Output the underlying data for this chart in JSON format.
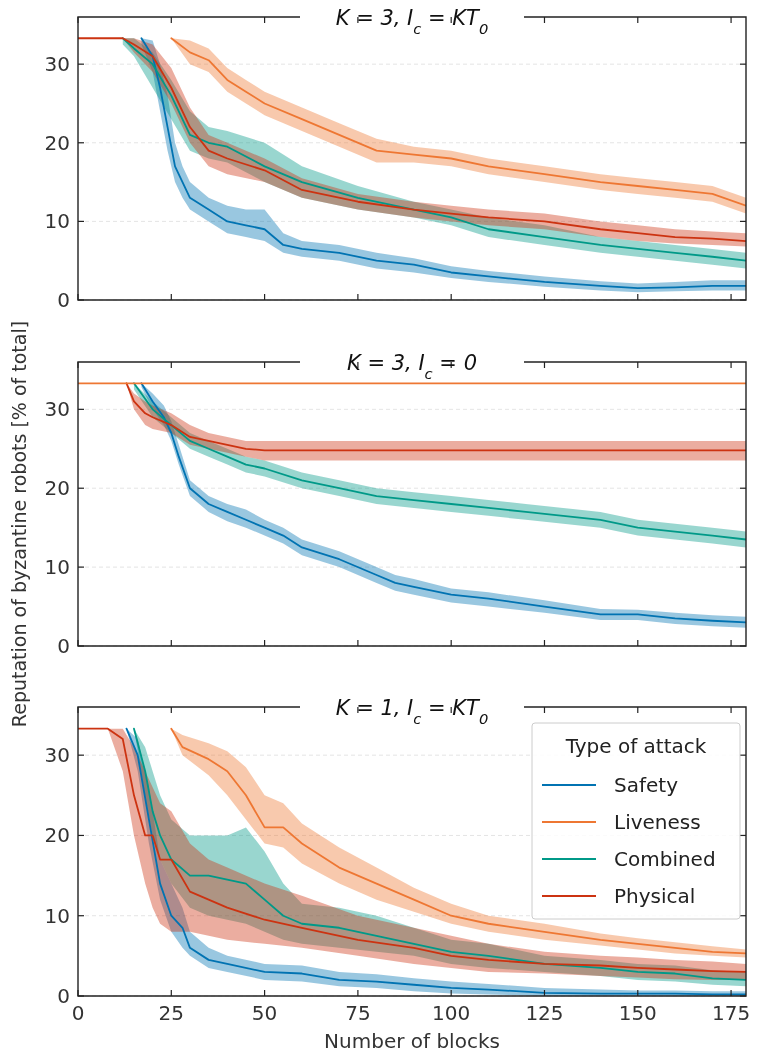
{
  "chart_data": [
    {
      "type": "line",
      "title": "K = 3, I$_{c}$ = KT$_{0}$",
      "xlim": [
        0,
        179
      ],
      "ylim": [
        0,
        36
      ],
      "xticks": [
        0,
        25,
        50,
        75,
        100,
        125,
        150,
        175
      ],
      "yticks": [
        0,
        10,
        20,
        30
      ],
      "grid": "y",
      "tick_labels": "y",
      "series": [
        {
          "color": "#0173b2",
          "x": [
            17,
            20,
            22,
            24,
            26,
            28,
            30,
            35,
            40,
            45,
            50,
            55,
            60,
            70,
            80,
            90,
            100,
            110,
            125,
            140,
            150,
            160,
            170,
            179
          ],
          "values": [
            33.3,
            31,
            27,
            22,
            17,
            15,
            13,
            11.5,
            10,
            9.5,
            9,
            7,
            6.5,
            6,
            5,
            4.5,
            3.5,
            3,
            2.3,
            1.8,
            1.5,
            1.6,
            1.8,
            1.8
          ],
          "lower": [
            32.5,
            29,
            24,
            19,
            15,
            13,
            11.5,
            10,
            8.5,
            8,
            7.5,
            6,
            5.5,
            5,
            4,
            3.5,
            2.8,
            2.3,
            1.7,
            1.2,
            1,
            1.1,
            1.2,
            1.2
          ],
          "upper": [
            33.3,
            33,
            30,
            26,
            20,
            17,
            15,
            13,
            12,
            11.5,
            11.5,
            8.5,
            7.5,
            7,
            6,
            5.3,
            4.3,
            3.7,
            3,
            2.4,
            2.1,
            2.3,
            2.5,
            2.5
          ]
        },
        {
          "color": "#ee7733",
          "x": [
            25,
            30,
            35,
            40,
            45,
            50,
            60,
            70,
            80,
            90,
            100,
            110,
            125,
            140,
            150,
            160,
            170,
            179
          ],
          "values": [
            33.3,
            31.5,
            30.5,
            28,
            26.5,
            25,
            23,
            21,
            19,
            18.5,
            18,
            17,
            16,
            15,
            14.5,
            14,
            13.5,
            12
          ],
          "lower": [
            33.3,
            30,
            29,
            26.5,
            25,
            23.5,
            21.5,
            19.5,
            17.5,
            17.5,
            17,
            16,
            15,
            14,
            13.5,
            13,
            12.5,
            11
          ],
          "upper": [
            33.3,
            33,
            32,
            29.5,
            28,
            26.5,
            24.5,
            22.5,
            20.5,
            19.5,
            19,
            18,
            17,
            16,
            15.5,
            15,
            14.5,
            13
          ]
        },
        {
          "color": "#009988",
          "x": [
            12,
            15,
            20,
            25,
            30,
            35,
            40,
            50,
            60,
            75,
            90,
            100,
            110,
            125,
            140,
            150,
            160,
            170,
            179
          ],
          "values": [
            33.3,
            32,
            30,
            26,
            21,
            20,
            19.5,
            17,
            15,
            13,
            11.5,
            10.5,
            9,
            8,
            7,
            6.5,
            6,
            5.5,
            5
          ],
          "lower": [
            32.5,
            31,
            27,
            23,
            19,
            18,
            17.5,
            15,
            13,
            11.5,
            10.5,
            9.5,
            8,
            7,
            6,
            5.5,
            5,
            4.5,
            4
          ],
          "upper": [
            33.3,
            33.3,
            31.5,
            28,
            24,
            22,
            21.5,
            20,
            17,
            14.5,
            12.5,
            11.5,
            10.5,
            9.5,
            8,
            7.5,
            7,
            6.5,
            6
          ]
        },
        {
          "color": "#cc3311",
          "x": [
            0,
            12,
            15,
            20,
            25,
            30,
            35,
            40,
            50,
            60,
            75,
            90,
            100,
            110,
            125,
            140,
            150,
            160,
            170,
            179
          ],
          "values": [
            33.3,
            33.3,
            32.5,
            31,
            27,
            22,
            19,
            18,
            16.5,
            14,
            12.5,
            11.5,
            11,
            10.5,
            10,
            9,
            8.5,
            8,
            7.8,
            7.5
          ],
          "lower": [
            33.3,
            33.3,
            31.5,
            29,
            25,
            20,
            17,
            16,
            15,
            13,
            11.5,
            10.5,
            10,
            9.5,
            9,
            8,
            7.5,
            7.2,
            7,
            6.8
          ],
          "upper": [
            33.3,
            33.3,
            33.3,
            32.5,
            29.5,
            24.5,
            21,
            20,
            18,
            15.5,
            13.5,
            12.5,
            12,
            11.5,
            11,
            10,
            9.5,
            9,
            8.7,
            8.5
          ]
        }
      ]
    },
    {
      "type": "line",
      "title": "K = 3, I$_{c}$ = 0",
      "ylabel": "Reputation of byzantine robots [% of total]",
      "xlim": [
        0,
        179
      ],
      "ylim": [
        0,
        36
      ],
      "xticks": [
        0,
        25,
        50,
        75,
        100,
        125,
        150,
        175
      ],
      "yticks": [
        0,
        10,
        20,
        30
      ],
      "grid": "y",
      "tick_labels": "y",
      "series": [
        {
          "color": "#0173b2",
          "x": [
            17,
            20,
            23,
            25,
            27,
            30,
            35,
            40,
            45,
            50,
            55,
            60,
            70,
            80,
            85,
            90,
            100,
            110,
            125,
            140,
            150,
            160,
            170,
            179
          ],
          "values": [
            33.3,
            31,
            29,
            27,
            24,
            20,
            18,
            17,
            16,
            15,
            14,
            12.5,
            11,
            9,
            8,
            7.5,
            6.5,
            6,
            5,
            4,
            4,
            3.5,
            3.2,
            3
          ],
          "lower": [
            32.8,
            30,
            28,
            26,
            23,
            19,
            17,
            15.8,
            15,
            14,
            13,
            11.5,
            10,
            8,
            7,
            6.5,
            5.5,
            5,
            4.2,
            3.3,
            3.3,
            2.8,
            2.5,
            2.3
          ],
          "upper": [
            33.3,
            32,
            30.5,
            28.5,
            25.5,
            21,
            19,
            18,
            17.3,
            16,
            15,
            13.5,
            12,
            10,
            9,
            8.5,
            7.3,
            6.8,
            5.8,
            4.7,
            4.6,
            4.2,
            3.9,
            3.7
          ]
        },
        {
          "color": "#009988",
          "x": [
            15,
            20,
            25,
            30,
            35,
            40,
            45,
            50,
            60,
            70,
            80,
            90,
            100,
            110,
            120,
            130,
            140,
            150,
            160,
            170,
            179
          ],
          "values": [
            33.3,
            30,
            28,
            26,
            25,
            24,
            23,
            22.5,
            21,
            20,
            19,
            18.5,
            18,
            17.5,
            17,
            16.5,
            16,
            15,
            14.5,
            14,
            13.5
          ],
          "lower": [
            32.5,
            29,
            27,
            25,
            24,
            23,
            22,
            21.5,
            20,
            19,
            18,
            17.5,
            17,
            16.5,
            16,
            15.5,
            15,
            14,
            13.5,
            13,
            12.5
          ],
          "upper": [
            33.3,
            31,
            29,
            27,
            26,
            25,
            24,
            23.5,
            22,
            21,
            20,
            19.5,
            19,
            18.5,
            18,
            17.5,
            17,
            16,
            15.5,
            15,
            14.5
          ]
        },
        {
          "color": "#cc3311",
          "x": [
            13,
            15,
            18,
            20,
            25,
            30,
            35,
            40,
            45,
            50,
            60,
            80,
            100,
            120,
            140,
            160,
            179
          ],
          "values": [
            33.3,
            31,
            29.5,
            29,
            28,
            26.5,
            26,
            25.5,
            25,
            24.8,
            24.8,
            24.8,
            24.8,
            24.8,
            24.8,
            24.8,
            24.8
          ],
          "lower": [
            33.3,
            30,
            28,
            27.5,
            27,
            25.5,
            25,
            24.5,
            24,
            23.5,
            23.5,
            23.5,
            23.5,
            23.5,
            23.5,
            23.5,
            23.5
          ],
          "upper": [
            33.3,
            32,
            31,
            30.5,
            29.5,
            28,
            27,
            26.5,
            26,
            26,
            26,
            26,
            26,
            26,
            26,
            26,
            26
          ]
        },
        {
          "color": "#ee7733",
          "x": [
            0,
            179
          ],
          "values": [
            33.3,
            33.3
          ]
        }
      ]
    },
    {
      "type": "line",
      "title": "K = 1, I$_{c}$ = KT$_{0}$",
      "xlabel": "Number of blocks",
      "xlim": [
        0,
        179
      ],
      "ylim": [
        0,
        36
      ],
      "xticks": [
        0,
        25,
        50,
        75,
        100,
        125,
        150,
        175
      ],
      "yticks": [
        0,
        10,
        20,
        30
      ],
      "grid": "y",
      "legend": "top right",
      "legend_title": "Type of attack",
      "series": [
        {
          "name": "Safety",
          "color": "#0173b2",
          "x": [
            13,
            16,
            19,
            22,
            25,
            28,
            30,
            35,
            40,
            50,
            60,
            70,
            80,
            90,
            100,
            110,
            125,
            140,
            150,
            160,
            170,
            179
          ],
          "values": [
            33.3,
            30,
            22,
            14,
            10,
            8.5,
            6,
            4.5,
            4,
            3,
            2.8,
            2,
            1.8,
            1.4,
            1,
            0.8,
            0.4,
            0.3,
            0.3,
            0.3,
            0.2,
            0.2
          ],
          "lower": [
            33.3,
            28,
            19,
            12,
            8,
            6,
            5,
            3.5,
            3,
            2,
            1.8,
            1.2,
            1,
            0.6,
            0.3,
            0.2,
            0,
            0,
            0,
            0,
            0,
            0
          ],
          "upper": [
            33.3,
            32,
            26,
            17,
            14,
            11,
            8,
            6,
            5,
            4,
            3.8,
            3,
            2.7,
            2.2,
            1.8,
            1.5,
            1,
            0.8,
            0.7,
            0.7,
            0.6,
            0.6
          ]
        },
        {
          "name": "Liveness",
          "color": "#ee7733",
          "x": [
            25,
            28,
            35,
            40,
            45,
            50,
            55,
            60,
            70,
            80,
            90,
            100,
            110,
            125,
            140,
            150,
            160,
            170,
            179
          ],
          "values": [
            33.3,
            31,
            29.5,
            28,
            25,
            21,
            21,
            19,
            16,
            14,
            12,
            10,
            9,
            8,
            7,
            6.5,
            6,
            5.5,
            5.3
          ],
          "lower": [
            33.3,
            30,
            27.5,
            25,
            22,
            19,
            18.5,
            16.5,
            14,
            12,
            10.5,
            9,
            8,
            7,
            6.3,
            5.8,
            5.3,
            5,
            4.8
          ],
          "upper": [
            33.3,
            32.5,
            31.5,
            30.5,
            28.5,
            25,
            24,
            21.5,
            18.5,
            16,
            13.5,
            11.5,
            10,
            9,
            7.8,
            7.2,
            6.7,
            6.2,
            5.8
          ]
        },
        {
          "name": "Combined",
          "color": "#009988",
          "x": [
            15,
            18,
            20,
            22,
            25,
            30,
            35,
            40,
            45,
            50,
            55,
            60,
            70,
            80,
            90,
            100,
            110,
            125,
            140,
            150,
            160,
            170,
            179
          ],
          "values": [
            33.3,
            28,
            23,
            20,
            17,
            15,
            15,
            14.5,
            14,
            12,
            10,
            9,
            8.5,
            7.5,
            6.5,
            5.5,
            5,
            4,
            3.5,
            3,
            2.8,
            2.2,
            2
          ],
          "lower": [
            33.3,
            25,
            20,
            17,
            14,
            11,
            10,
            9.5,
            9,
            8,
            7,
            6.5,
            6,
            5.5,
            5,
            4,
            3.5,
            3,
            2.5,
            2,
            1.8,
            1.4,
            1.2
          ],
          "upper": [
            33.3,
            31,
            28,
            25,
            22,
            20,
            20,
            20,
            21,
            18,
            14,
            11.5,
            11,
            10,
            8.5,
            7,
            6.5,
            5,
            4.5,
            4,
            3.8,
            3.2,
            3
          ]
        },
        {
          "name": "Physical",
          "color": "#cc3311",
          "x": [
            0,
            8,
            12,
            15,
            18,
            20,
            22,
            25,
            30,
            35,
            40,
            50,
            60,
            75,
            90,
            100,
            110,
            125,
            140,
            150,
            160,
            170,
            179
          ],
          "values": [
            33.3,
            33.3,
            32,
            25,
            20,
            20,
            17,
            17,
            13,
            12,
            11,
            9.5,
            8.5,
            7,
            6,
            5,
            4.5,
            4,
            3.8,
            3.5,
            3.3,
            3.1,
            3
          ],
          "lower": [
            33.3,
            33.3,
            28,
            20,
            14,
            11,
            9,
            8,
            8,
            7.5,
            7,
            6.5,
            6,
            5,
            4,
            3.5,
            3,
            2.8,
            2.5,
            2.3,
            2.1,
            2,
            2
          ],
          "upper": [
            33.3,
            33.3,
            33.3,
            31,
            28,
            26,
            24,
            23,
            19,
            17,
            16,
            14,
            12.5,
            10,
            8.5,
            7.5,
            6.5,
            5.5,
            5,
            4.8,
            4.5,
            4.3,
            4
          ]
        }
      ]
    }
  ]
}
